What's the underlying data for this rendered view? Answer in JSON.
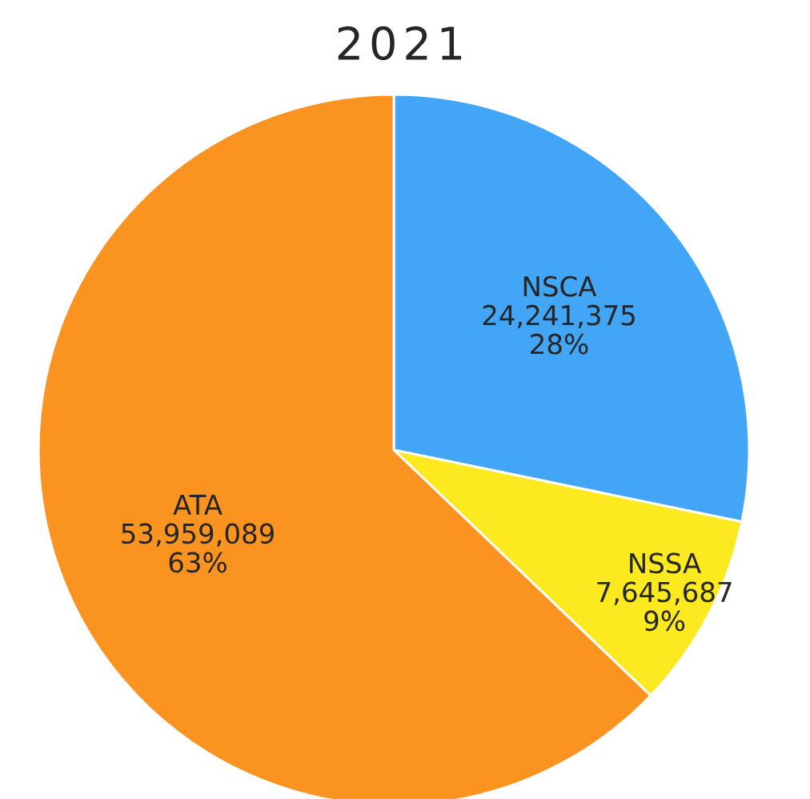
{
  "chart_data": {
    "type": "pie",
    "title": "2021",
    "categories": [
      "NSCA",
      "NSSA",
      "ATA"
    ],
    "values": [
      24241375,
      7645687,
      53959089
    ],
    "value_labels": [
      "24,241,375",
      "7,645,687",
      "53,959,089"
    ],
    "annotations": [
      "28%",
      "9%",
      "63%"
    ],
    "colors": [
      "#42a5f5",
      "#fce91f",
      "#fb9320"
    ]
  }
}
